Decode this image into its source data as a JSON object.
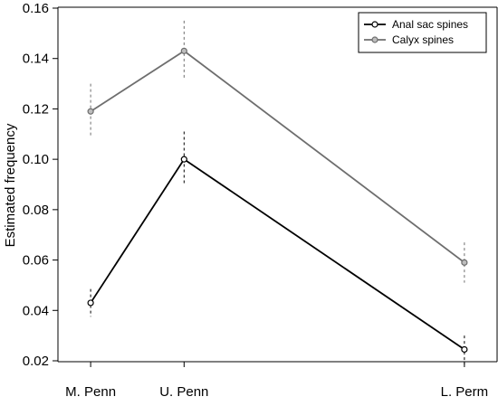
{
  "chart_data": {
    "type": "line",
    "title": "",
    "xlabel": "",
    "ylabel": "Estimated frequency",
    "x_axis": "ordinal time intervals, unequal spacing",
    "categories": [
      "M. Penn",
      "U. Penn",
      "L. Perm"
    ],
    "x_positions": [
      0,
      1,
      4
    ],
    "xlim": [
      -0.35,
      4.35
    ],
    "ylim": [
      0.015,
      0.16
    ],
    "y_ticks": [
      0.02,
      0.04,
      0.06,
      0.08,
      0.1,
      0.12,
      0.14,
      0.16
    ],
    "y_tick_labels": [
      "0.02",
      "0.04",
      "0.06",
      "0.08",
      "0.10",
      "0.12",
      "0.14",
      "0.16"
    ],
    "grid": false,
    "legend_position": "top-right",
    "series": [
      {
        "name": "Anal sac spines",
        "color": "#000000",
        "values": [
          0.043,
          0.1,
          0.0245
        ],
        "error_low": [
          0.0375,
          0.09,
          0.0185
        ],
        "error_high": [
          0.0485,
          0.111,
          0.03
        ]
      },
      {
        "name": "Calyx spines",
        "color": "#6e6e6e",
        "values": [
          0.119,
          0.143,
          0.059
        ],
        "error_low": [
          0.109,
          0.132,
          0.051
        ],
        "error_high": [
          0.13,
          0.155,
          0.067
        ]
      }
    ]
  }
}
